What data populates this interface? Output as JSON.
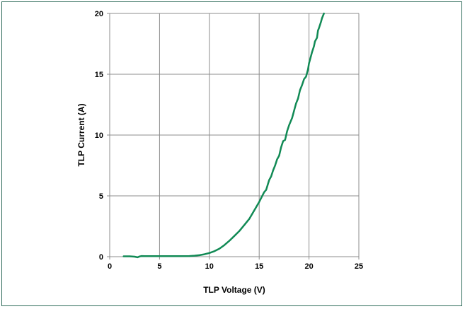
{
  "chart_data": {
    "type": "line",
    "title": "",
    "xlabel": "TLP Voltage (V)",
    "ylabel": "TLP Current (A)",
    "xlim": [
      0,
      25
    ],
    "ylim": [
      0,
      20
    ],
    "xticks": [
      0,
      5,
      10,
      15,
      20,
      25
    ],
    "yticks": [
      0,
      5,
      10,
      15,
      20
    ],
    "xtick_labels": [
      "0",
      "5",
      "10",
      "15",
      "20",
      "25"
    ],
    "ytick_labels": [
      "0",
      "5",
      "10",
      "15",
      "20"
    ],
    "grid": true,
    "legend": "none",
    "series": [
      {
        "color": "#118a55",
        "x": [
          1.4,
          2.0,
          2.5,
          2.8,
          3.0,
          3.2,
          3.5,
          4.0,
          5.0,
          6.0,
          7.0,
          8.0,
          8.5,
          9.0,
          9.5,
          10.0,
          10.5,
          11.0,
          11.5,
          12.0,
          12.5,
          13.0,
          13.5,
          14.0,
          14.5,
          15.0,
          15.5,
          15.7,
          16.0,
          16.2,
          16.4,
          16.6,
          16.8,
          17.0,
          17.2,
          17.4,
          17.6,
          17.8,
          18.0,
          18.1,
          18.3,
          18.5,
          18.7,
          18.9,
          19.1,
          19.3,
          19.5,
          19.7,
          19.9,
          20.0,
          20.1,
          20.3,
          20.5,
          20.6,
          20.8,
          20.9,
          21.0,
          21.2,
          21.3,
          21.5
        ],
        "y": [
          0.03,
          0.03,
          0.0,
          -0.05,
          0.02,
          0.05,
          0.04,
          0.04,
          0.04,
          0.04,
          0.04,
          0.05,
          0.08,
          0.12,
          0.2,
          0.3,
          0.45,
          0.65,
          0.95,
          1.3,
          1.7,
          2.1,
          2.6,
          3.1,
          3.8,
          4.5,
          5.3,
          5.5,
          6.3,
          6.6,
          7.1,
          7.5,
          8.0,
          8.3,
          9.0,
          9.5,
          9.6,
          10.3,
          10.8,
          11.0,
          11.4,
          12.0,
          12.6,
          13.0,
          13.7,
          14.1,
          14.6,
          14.8,
          15.4,
          15.9,
          16.2,
          16.8,
          17.3,
          17.7,
          18.0,
          18.6,
          18.8,
          19.3,
          19.6,
          20.0
        ]
      }
    ]
  }
}
